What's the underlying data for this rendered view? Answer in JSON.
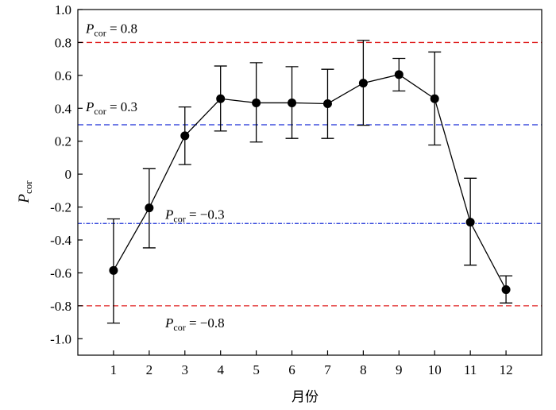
{
  "chart_data": {
    "type": "line",
    "xlabel": "月份",
    "ylabel": {
      "main": "P",
      "sub": "cor"
    },
    "ylim": [
      -1.1,
      1.0
    ],
    "xlim": [
      0,
      13
    ],
    "x_ticks": [
      "1",
      "2",
      "3",
      "4",
      "5",
      "6",
      "7",
      "8",
      "9",
      "10",
      "11",
      "12"
    ],
    "y_ticks": [
      "1.0",
      "0.8",
      "0.6",
      "0.4",
      "0.2",
      "0",
      "-0.2",
      "-0.4",
      "-0.6",
      "-0.8",
      "-1.0"
    ],
    "y_tick_values": [
      1.0,
      0.8,
      0.6,
      0.4,
      0.2,
      0,
      -0.2,
      -0.4,
      -0.6,
      -0.8,
      -1.0
    ],
    "series": [
      {
        "x": [
          1,
          2,
          3,
          4,
          5,
          6,
          7,
          8,
          9,
          10,
          11,
          12
        ],
        "y": [
          -0.585,
          -0.205,
          0.233,
          0.458,
          0.433,
          0.433,
          0.428,
          0.553,
          0.605,
          0.458,
          -0.292,
          -0.702
        ],
        "err_low": [
          -0.905,
          -0.448,
          0.058,
          0.262,
          0.195,
          0.217,
          0.217,
          0.297,
          0.505,
          0.177,
          -0.553,
          -0.783
        ],
        "err_high": [
          -0.272,
          0.033,
          0.408,
          0.657,
          0.677,
          0.653,
          0.637,
          0.813,
          0.703,
          0.742,
          -0.025,
          -0.618
        ]
      }
    ],
    "reference_lines": [
      {
        "y": 0.8,
        "style": "dashed",
        "color": "#e02020",
        "label_main": "P",
        "label_sub": "cor",
        "label_value": " = 0.8"
      },
      {
        "y": 0.3,
        "style": "dashed",
        "color": "#1a2fd6",
        "label_main": "P",
        "label_sub": "cor",
        "label_value": " = 0.3"
      },
      {
        "y": -0.3,
        "style": "dashdot",
        "color": "#1a2fd6",
        "label_main": "P",
        "label_sub": "cor",
        "label_value": " = −0.3"
      },
      {
        "y": -0.8,
        "style": "dashed",
        "color": "#e02020",
        "label_main": "P",
        "label_sub": "cor",
        "label_value": " = −0.8"
      }
    ],
    "grid": false,
    "legend": "none"
  }
}
